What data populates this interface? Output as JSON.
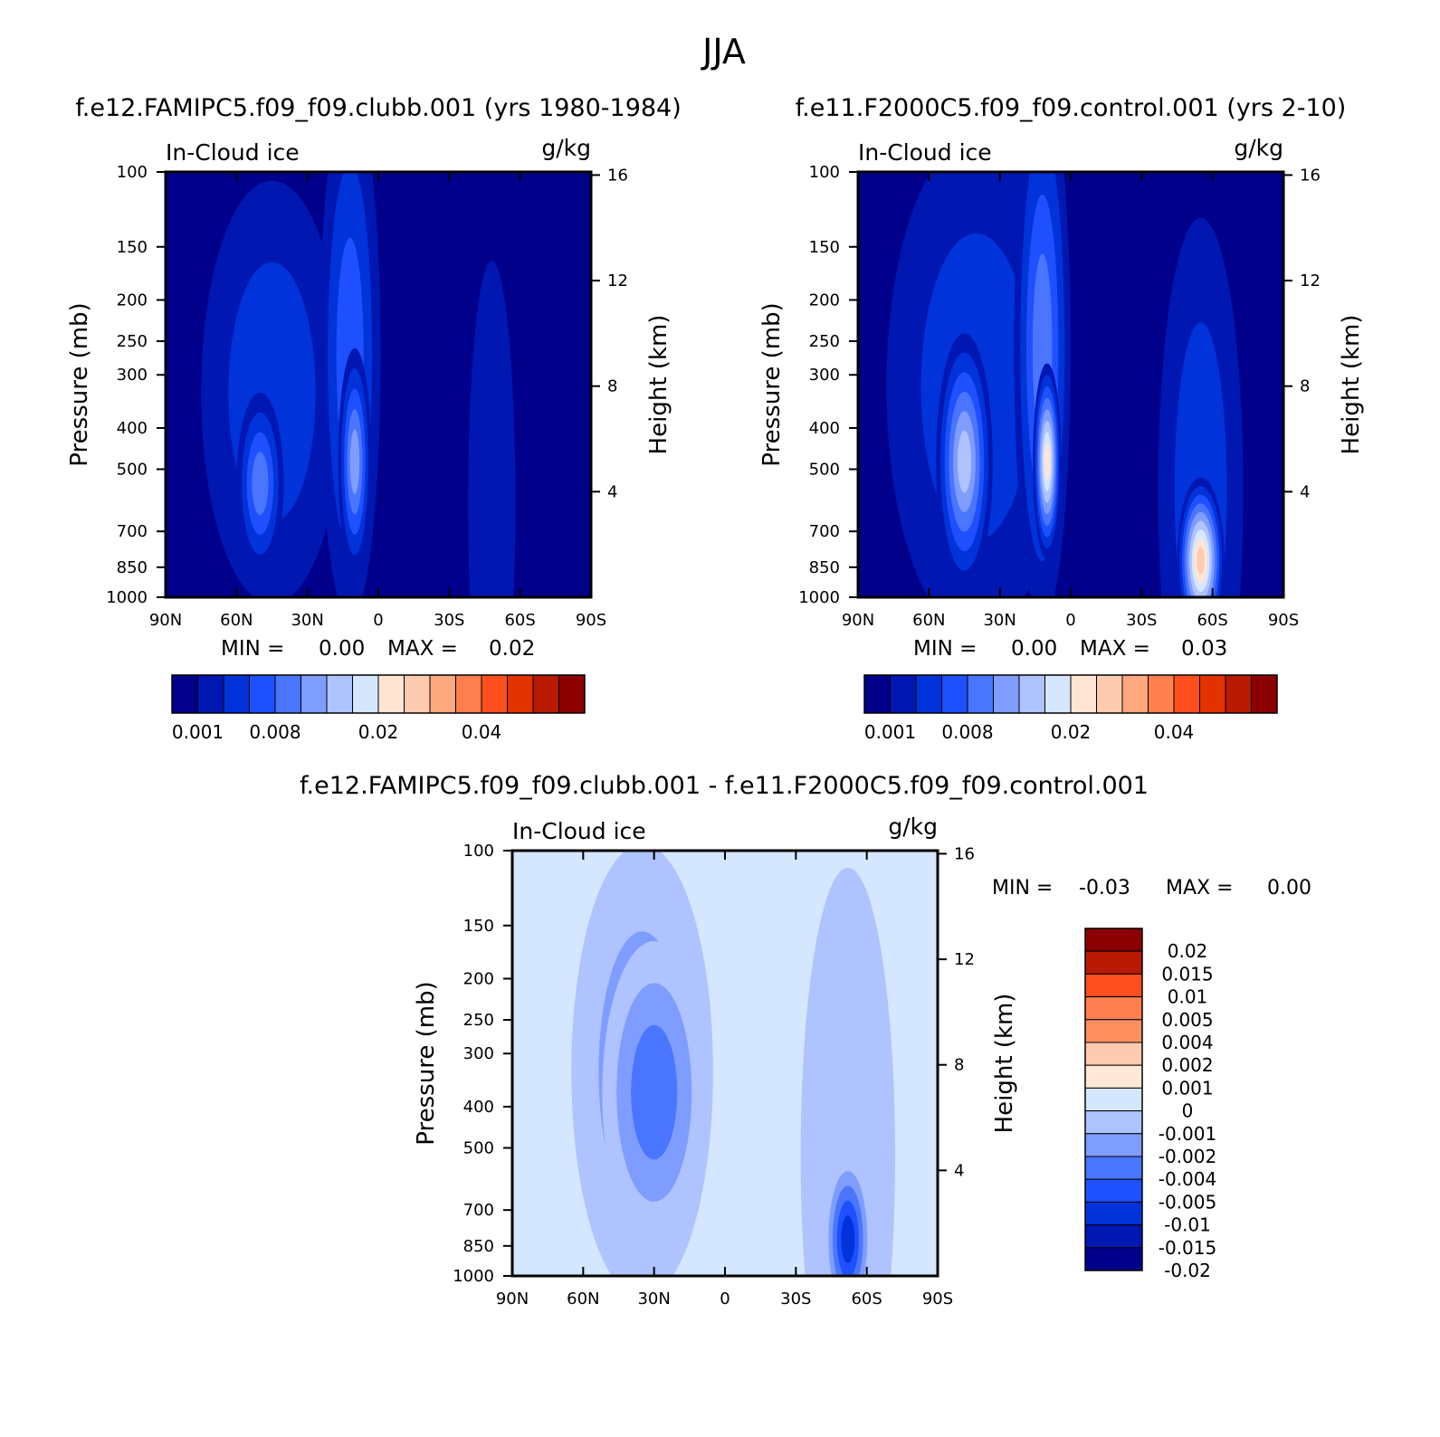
{
  "figure": {
    "title": "JJA"
  },
  "colors": {
    "abs": [
      "#00008b",
      "#0017b2",
      "#0033d9",
      "#1e50ff",
      "#4a75ff",
      "#7f9dff",
      "#aec3ff",
      "#d5e6ff",
      "#ffe5d2",
      "#ffcbb0",
      "#ffa77f",
      "#ff7f4f",
      "#ff4f1e",
      "#e23200",
      "#b81a00",
      "#8b0000"
    ],
    "diff": [
      "#00008b",
      "#0017b2",
      "#0033d9",
      "#1e50ff",
      "#4a75ff",
      "#7f9dff",
      "#aec3ff",
      "#d5e6ff",
      "#ffe8d8",
      "#ffcbb0",
      "#ff8f5f",
      "#ff7f4f",
      "#ff4f1e",
      "#b81a00",
      "#8b0000"
    ]
  },
  "chart_data": [
    {
      "type": "contour",
      "panel": "top-left",
      "title": "f.e12.FAMIPC5.f09_f09.clubb.001 (yrs 1980-1984)",
      "left_label": "In-Cloud ice",
      "units": "g/kg",
      "xlabel": "",
      "ylabel": "Pressure (mb)",
      "ylabel_right": "Height (km)",
      "xticks": [
        "90N",
        "60N",
        "30N",
        "0",
        "30S",
        "60S",
        "90S"
      ],
      "yticks": [
        "100",
        "150",
        "200",
        "250",
        "300",
        "400",
        "500",
        "700",
        "850",
        "1000"
      ],
      "yticks_right": [
        "16",
        "12",
        "8",
        "4"
      ],
      "stats": {
        "min_label": "MIN =",
        "min": "0.00",
        "max_label": "MAX =",
        "max": "0.02"
      },
      "colorbar_labels": [
        "0.001",
        "0.008",
        "0.02",
        "0.04"
      ],
      "blobs": [
        {
          "name": "nh-midlat-ice",
          "lat": 45,
          "p": 330,
          "dlat": 30,
          "dp": 280,
          "level": 2
        },
        {
          "name": "nh-tropics-ice",
          "lat": 12,
          "p": 270,
          "dlat": 13,
          "dp": 350,
          "level": 3
        },
        {
          "name": "nh-lower-blob",
          "lat": 50,
          "p": 540,
          "dlat": 10,
          "dp": 120,
          "level": 4
        },
        {
          "name": "tropical-core",
          "lat": 10,
          "p": 480,
          "dlat": 7,
          "dp": 150,
          "level": 5
        },
        {
          "name": "sh-plume",
          "lat": -48,
          "p": 600,
          "dlat": 10,
          "dp": 320,
          "level": 1
        }
      ]
    },
    {
      "type": "contour",
      "panel": "top-right",
      "title": "f.e11.F2000C5.f09_f09.control.001 (yrs 2-10)",
      "left_label": "In-Cloud ice",
      "units": "g/kg",
      "xlabel": "",
      "ylabel": "Pressure (mb)",
      "ylabel_right": "Height (km)",
      "xticks": [
        "90N",
        "60N",
        "30N",
        "0",
        "30S",
        "60S",
        "90S"
      ],
      "yticks": [
        "100",
        "150",
        "200",
        "250",
        "300",
        "400",
        "500",
        "700",
        "850",
        "1000"
      ],
      "yticks_right": [
        "16",
        "12",
        "8",
        "4"
      ],
      "stats": {
        "min_label": "MIN =",
        "min": "0.00",
        "max_label": "MAX =",
        "max": "0.03"
      },
      "colorbar_labels": [
        "0.001",
        "0.008",
        "0.02",
        "0.04"
      ],
      "blobs": [
        {
          "name": "nh-broad-ice",
          "lat": 40,
          "p": 320,
          "dlat": 38,
          "dp": 330,
          "level": 2
        },
        {
          "name": "tropical-column",
          "lat": 12,
          "p": 260,
          "dlat": 12,
          "dp": 360,
          "level": 4
        },
        {
          "name": "nh-lower-blob",
          "lat": 45,
          "p": 480,
          "dlat": 12,
          "dp": 170,
          "level": 6
        },
        {
          "name": "tropical-core",
          "lat": 10,
          "p": 480,
          "dlat": 6,
          "dp": 130,
          "level": 8
        },
        {
          "name": "sh-plume",
          "lat": -55,
          "p": 560,
          "dlat": 18,
          "dp": 360,
          "level": 2
        },
        {
          "name": "sh-low-level-max",
          "lat": -55,
          "p": 820,
          "dlat": 10,
          "dp": 110,
          "level": 9
        }
      ]
    },
    {
      "type": "contour",
      "panel": "bottom-difference",
      "title": "f.e12.FAMIPC5.f09_f09.clubb.001 - f.e11.F2000C5.f09_f09.control.001",
      "left_label": "In-Cloud ice",
      "units": "g/kg",
      "xlabel": "",
      "ylabel": "Pressure (mb)",
      "ylabel_right": "Height (km)",
      "xticks": [
        "90N",
        "60N",
        "30N",
        "0",
        "30S",
        "60S",
        "90S"
      ],
      "yticks": [
        "100",
        "150",
        "200",
        "250",
        "300",
        "400",
        "500",
        "700",
        "850",
        "1000"
      ],
      "yticks_right": [
        "16",
        "12",
        "8",
        "4"
      ],
      "stats": {
        "min_label": "MIN =",
        "min": "-0.03",
        "max_label": "MAX =",
        "max": "0.00"
      },
      "colorbar_labels": [
        "0.02",
        "0.015",
        "0.01",
        "0.005",
        "0.004",
        "0.002",
        "0.001",
        "0",
        "-0.001",
        "-0.002",
        "-0.004",
        "-0.005",
        "-0.01",
        "-0.015",
        "-0.02"
      ],
      "blobs": [
        {
          "name": "nh-negative-region",
          "lat": 35,
          "p": 330,
          "dlat": 30,
          "dp": 300,
          "level": 2
        },
        {
          "name": "nh-strong-negative",
          "lat": 30,
          "p": 370,
          "dlat": 22,
          "dp": 200,
          "level": 3
        },
        {
          "name": "sh-negative-plume",
          "lat": -52,
          "p": 520,
          "dlat": 20,
          "dp": 380,
          "level": 1
        },
        {
          "name": "sh-low-level-min",
          "lat": -52,
          "p": 820,
          "dlat": 10,
          "dp": 110,
          "level": 5
        }
      ]
    }
  ]
}
